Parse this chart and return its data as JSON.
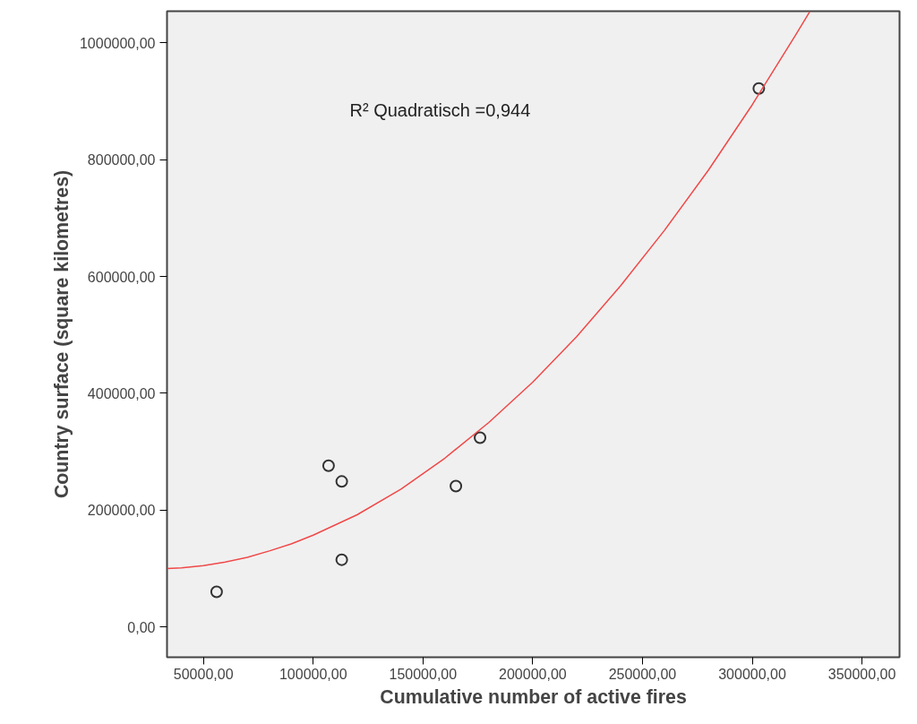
{
  "chart_data": {
    "type": "scatter",
    "xlabel": "Cumulative number of active fires",
    "ylabel": "Country surface (square kilometres)",
    "annotations": [
      "R² Quadratisch =0,944"
    ],
    "grid": false,
    "xlim": [
      33400,
      367100
    ],
    "ylim": [
      -52000,
      1054300
    ],
    "xticks": [
      {
        "value": 50000,
        "label": "50000,00"
      },
      {
        "value": 100000,
        "label": "100000,00"
      },
      {
        "value": 150000,
        "label": "150000,00"
      },
      {
        "value": 200000,
        "label": "200000,00"
      },
      {
        "value": 250000,
        "label": "250000,00"
      },
      {
        "value": 300000,
        "label": "300000,00"
      },
      {
        "value": 350000,
        "label": "350000,00"
      }
    ],
    "yticks": [
      {
        "value": 0,
        "label": "0,00"
      },
      {
        "value": 200000,
        "label": "200000,00"
      },
      {
        "value": 400000,
        "label": "400000,00"
      },
      {
        "value": 600000,
        "label": "600000,00"
      },
      {
        "value": 800000,
        "label": "800000,00"
      },
      {
        "value": 1000000,
        "label": "1000000,00"
      }
    ],
    "series": [
      {
        "color": "#333333",
        "marker": "circle",
        "x": [
          56000,
          107000,
          113000,
          113000,
          165000,
          176000,
          303000
        ],
        "values": [
          60000,
          276000,
          249000,
          115000,
          241000,
          324000,
          922000
        ]
      },
      {
        "type": "line",
        "color": "#f04848",
        "x": [
          33400,
          40000,
          50000,
          60000,
          70000,
          80000,
          90000,
          100000,
          120000,
          140000,
          160000,
          180000,
          200000,
          220000,
          240000,
          260000,
          280000,
          300000,
          320000,
          326300
        ],
        "values": [
          100000,
          101000,
          105000,
          111000,
          119000,
          130000,
          142000,
          157000,
          192000,
          236000,
          289000,
          350000,
          419000,
          497000,
          584000,
          679000,
          782000,
          894000,
          1015000,
          1054000
        ]
      }
    ]
  }
}
